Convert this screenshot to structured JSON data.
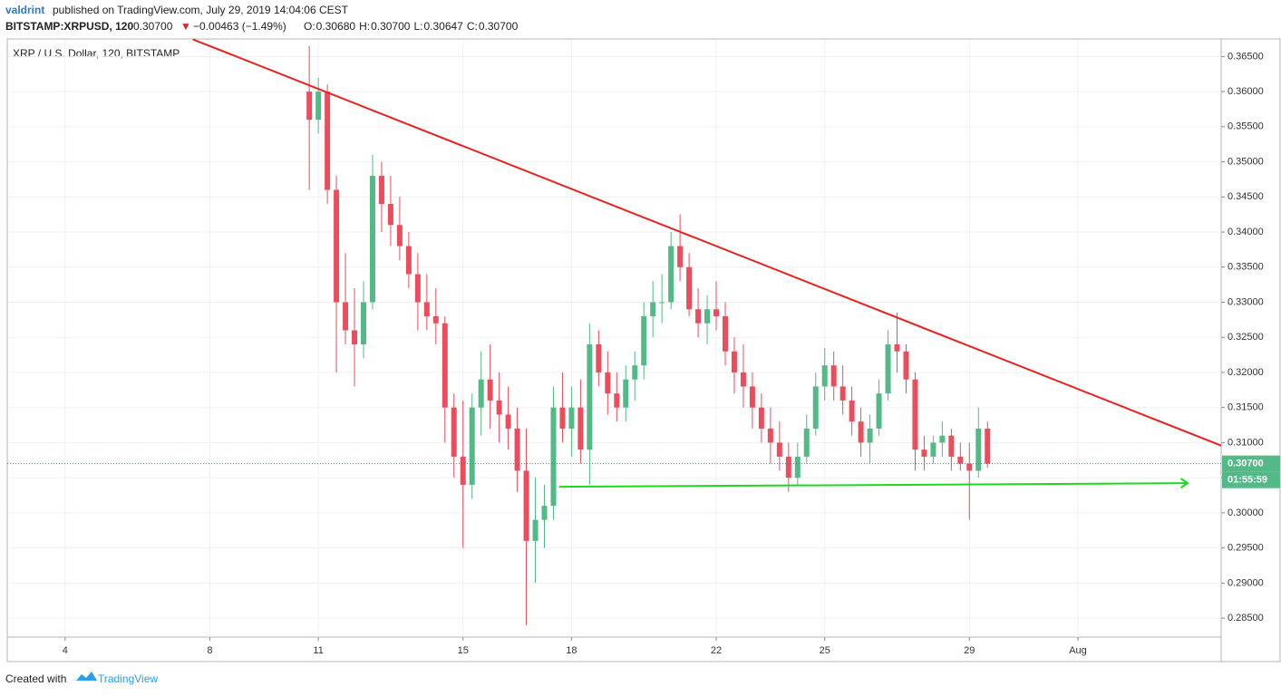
{
  "header": {
    "author": "valdrint",
    "published": "published on TradingView.com, July 29, 2019 14:04:06 CEST",
    "symbol": "BITSTAMP:XRPUSD, 120",
    "last": "0.30700",
    "direction": "▼",
    "change": "−0.00463 (−1.49%)",
    "ohlc": [
      "O:",
      "0.30680",
      "H:",
      "0.30700",
      "L:",
      "0.30647",
      "C:",
      "0.30700"
    ]
  },
  "footer": {
    "text": "Created with",
    "brand": "TradingView"
  },
  "chart_data": {
    "type": "candlestick",
    "title": "XRP / U.S. Dollar, 120, BITSTAMP",
    "up_color": "#53b987",
    "down_color": "#eb4d5c",
    "grid": true,
    "x": [
      10.75,
      11,
      11.25,
      11.5,
      11.75,
      12,
      12.25,
      12.5,
      12.75,
      13,
      13.25,
      13.5,
      13.75,
      14,
      14.25,
      14.5,
      14.75,
      15,
      15.25,
      15.5,
      15.75,
      16,
      16.25,
      16.5,
      16.75,
      17,
      17.25,
      17.5,
      17.75,
      18,
      18.25,
      18.5,
      18.75,
      19,
      19.25,
      19.5,
      19.75,
      20,
      20.25,
      20.5,
      20.75,
      21,
      21.25,
      21.5,
      21.75,
      22,
      22.25,
      22.5,
      22.75,
      23,
      23.25,
      23.5,
      23.75,
      24,
      24.25,
      24.5,
      24.75,
      25,
      25.25,
      25.5,
      25.75,
      26,
      26.25,
      26.5,
      26.75,
      27,
      27.25,
      27.5,
      27.75,
      28,
      28.25,
      28.5,
      28.75,
      29,
      29.25,
      29.5
    ],
    "open": [
      0.36,
      0.356,
      0.36,
      0.346,
      0.33,
      0.326,
      0.324,
      0.33,
      0.348,
      0.344,
      0.341,
      0.338,
      0.334,
      0.33,
      0.328,
      0.327,
      0.315,
      0.308,
      0.304,
      0.315,
      0.319,
      0.316,
      0.314,
      0.312,
      0.306,
      0.296,
      0.299,
      0.301,
      0.315,
      0.312,
      0.315,
      0.309,
      0.324,
      0.32,
      0.317,
      0.315,
      0.319,
      0.321,
      0.328,
      0.33,
      0.33,
      0.338,
      0.335,
      0.329,
      0.327,
      0.329,
      0.328,
      0.323,
      0.32,
      0.318,
      0.315,
      0.312,
      0.31,
      0.308,
      0.305,
      0.308,
      0.312,
      0.318,
      0.321,
      0.318,
      0.316,
      0.313,
      0.31,
      0.312,
      0.317,
      0.324,
      0.323,
      0.319,
      0.309,
      0.308,
      0.31,
      0.311,
      0.308,
      0.307,
      0.306,
      0.312
    ],
    "high": [
      0.3665,
      0.362,
      0.361,
      0.348,
      0.337,
      0.332,
      0.333,
      0.351,
      0.35,
      0.348,
      0.345,
      0.34,
      0.337,
      0.334,
      0.332,
      0.328,
      0.317,
      0.316,
      0.317,
      0.323,
      0.324,
      0.32,
      0.318,
      0.315,
      0.312,
      0.305,
      0.304,
      0.318,
      0.32,
      0.318,
      0.319,
      0.327,
      0.326,
      0.323,
      0.32,
      0.321,
      0.323,
      0.33,
      0.333,
      0.334,
      0.34,
      0.3425,
      0.337,
      0.332,
      0.331,
      0.333,
      0.33,
      0.325,
      0.324,
      0.32,
      0.317,
      0.315,
      0.313,
      0.31,
      0.31,
      0.314,
      0.32,
      0.3235,
      0.323,
      0.321,
      0.318,
      0.315,
      0.314,
      0.319,
      0.326,
      0.3285,
      0.324,
      0.32,
      0.311,
      0.311,
      0.313,
      0.312,
      0.31,
      0.31,
      0.315,
      0.313
    ],
    "low": [
      0.346,
      0.354,
      0.344,
      0.32,
      0.324,
      0.318,
      0.322,
      0.329,
      0.34,
      0.338,
      0.336,
      0.332,
      0.326,
      0.326,
      0.324,
      0.31,
      0.305,
      0.295,
      0.302,
      0.311,
      0.312,
      0.31,
      0.309,
      0.303,
      0.284,
      0.29,
      0.295,
      0.299,
      0.31,
      0.308,
      0.307,
      0.304,
      0.318,
      0.314,
      0.313,
      0.313,
      0.316,
      0.319,
      0.325,
      0.327,
      0.329,
      0.333,
      0.328,
      0.325,
      0.324,
      0.326,
      0.321,
      0.317,
      0.315,
      0.312,
      0.31,
      0.307,
      0.306,
      0.303,
      0.304,
      0.307,
      0.311,
      0.316,
      0.316,
      0.314,
      0.311,
      0.308,
      0.307,
      0.311,
      0.316,
      0.32,
      0.317,
      0.306,
      0.306,
      0.307,
      0.308,
      0.306,
      0.306,
      0.299,
      0.305,
      0.3064
    ],
    "close": [
      0.356,
      0.36,
      0.346,
      0.33,
      0.326,
      0.324,
      0.33,
      0.348,
      0.344,
      0.341,
      0.338,
      0.334,
      0.33,
      0.328,
      0.327,
      0.315,
      0.308,
      0.304,
      0.315,
      0.319,
      0.316,
      0.314,
      0.312,
      0.306,
      0.296,
      0.299,
      0.301,
      0.315,
      0.312,
      0.315,
      0.309,
      0.324,
      0.32,
      0.317,
      0.315,
      0.319,
      0.321,
      0.328,
      0.33,
      0.33,
      0.338,
      0.335,
      0.329,
      0.327,
      0.329,
      0.328,
      0.323,
      0.32,
      0.318,
      0.315,
      0.312,
      0.31,
      0.308,
      0.305,
      0.308,
      0.312,
      0.318,
      0.321,
      0.318,
      0.316,
      0.313,
      0.31,
      0.312,
      0.317,
      0.324,
      0.323,
      0.319,
      0.309,
      0.308,
      0.31,
      0.311,
      0.308,
      0.307,
      0.306,
      0.312,
      0.307
    ],
    "xlim": [
      2.4,
      35.96
    ],
    "ylim": [
      0.2823,
      0.3675
    ],
    "xticks": [
      4,
      8,
      11,
      15,
      18,
      22,
      25,
      29,
      {
        "value": 32,
        "label": "Aug"
      }
    ],
    "yticks": [
      {
        "value": 0.285,
        "label": "0.28500"
      },
      {
        "value": 0.29,
        "label": "0.29000"
      },
      {
        "value": 0.295,
        "label": "0.29500"
      },
      {
        "value": 0.3,
        "label": "0.30000"
      },
      {
        "value": 0.305,
        "label": "0.30500"
      },
      {
        "value": 0.31,
        "label": "0.31000"
      },
      {
        "value": 0.315,
        "label": "0.31500"
      },
      {
        "value": 0.32,
        "label": "0.32000"
      },
      {
        "value": 0.325,
        "label": "0.32500"
      },
      {
        "value": 0.33,
        "label": "0.33000"
      },
      {
        "value": 0.335,
        "label": "0.33500"
      },
      {
        "value": 0.34,
        "label": "0.34000"
      },
      {
        "value": 0.345,
        "label": "0.34500"
      },
      {
        "value": 0.35,
        "label": "0.35000"
      },
      {
        "value": 0.355,
        "label": "0.35500"
      },
      {
        "value": 0.36,
        "label": "0.36000"
      },
      {
        "value": 0.365,
        "label": "0.36500"
      }
    ],
    "last_price": {
      "value": 0.307,
      "label": "0.30700",
      "color": "#53b987"
    },
    "countdown": "01:55:59",
    "trendlines": [
      {
        "color": "#e8231f",
        "x": [
          7.53,
          35.96
        ],
        "y": [
          0.36745,
          0.30958
        ]
      },
      {
        "color": "#1ed81e",
        "x": [
          17.66,
          35.03
        ],
        "y": [
          0.30371,
          0.30423
        ],
        "arrow": true
      }
    ]
  }
}
